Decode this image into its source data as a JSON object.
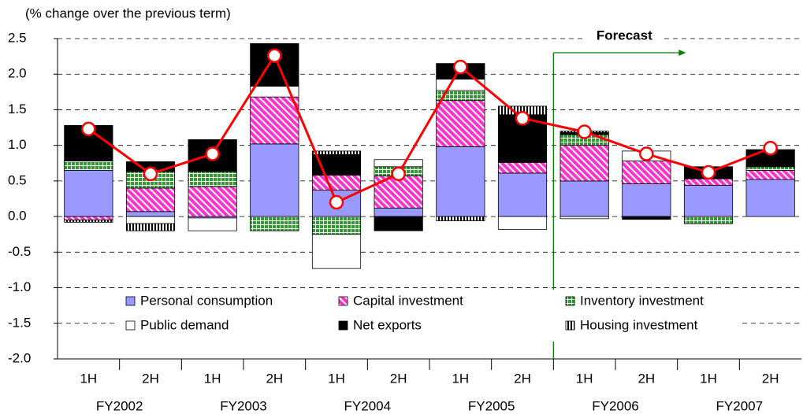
{
  "chart_data": {
    "type": "stacked-bar-line",
    "y_label": "(% change over the previous term)",
    "annotation": "Forecast",
    "categories": [
      "1H",
      "2H",
      "1H",
      "2H",
      "1H",
      "2H",
      "1H",
      "2H",
      "1H",
      "2H",
      "1H",
      "2H"
    ],
    "groups": [
      "FY2002",
      "FY2003",
      "FY2004",
      "FY2005",
      "FY2006",
      "FY2007"
    ],
    "ylim": [
      -2.0,
      2.5
    ],
    "yticks": [
      2.5,
      {
        "value": 2,
        "label": "2.0"
      },
      1.5,
      {
        "value": 1,
        "label": "1.0"
      },
      0.5,
      {
        "value": 0,
        "label": "0.0"
      },
      -0.5,
      {
        "value": -1,
        "label": "-1.0"
      },
      -1.5,
      {
        "value": -2,
        "label": "-2.0"
      }
    ],
    "grid": true,
    "series": [
      {
        "name": "Personal consumption",
        "color": "#9999ff",
        "pattern": "solid",
        "values": [
          0.65,
          0.07,
          -0.02,
          1.02,
          0.37,
          0.12,
          0.98,
          0.61,
          0.5,
          0.46,
          0.44,
          0.52
        ]
      },
      {
        "name": "Capital investment",
        "color": "#ff33cc",
        "pattern": "diagonal",
        "values": [
          -0.05,
          0.33,
          0.42,
          0.66,
          0.21,
          0.45,
          0.65,
          0.15,
          0.5,
          0.32,
          0.09,
          0.13
        ]
      },
      {
        "name": "Inventory investment",
        "color": "#339933",
        "pattern": "grid",
        "values": [
          0.13,
          0.23,
          0.21,
          -0.2,
          -0.25,
          0.13,
          0.14,
          0,
          0.15,
          0,
          -0.1,
          0.05
        ]
      },
      {
        "name": "Public demand",
        "color": "#ffffff",
        "pattern": "solid",
        "values": [
          0,
          -0.1,
          -0.18,
          0.15,
          -0.48,
          0.1,
          0.16,
          -0.18,
          -0.03,
          0.14,
          0,
          0
        ]
      },
      {
        "name": "Net exports",
        "color": "#000000",
        "pattern": "solid",
        "values": [
          0.5,
          0.14,
          0.45,
          0.6,
          0.29,
          -0.2,
          0.22,
          0.67,
          0.03,
          -0.04,
          0.17,
          0.24
        ]
      },
      {
        "name": "Housing investment",
        "color": "#000000",
        "pattern": "vertical",
        "values": [
          -0.03,
          -0.1,
          0,
          0,
          0.05,
          0,
          -0.06,
          0.12,
          0.02,
          0,
          0,
          0
        ]
      }
    ],
    "line": {
      "color": "#ff0000",
      "values": [
        1.23,
        0.6,
        0.88,
        2.26,
        0.2,
        0.6,
        2.1,
        1.38,
        1.19,
        0.88,
        0.62,
        0.96
      ]
    }
  }
}
